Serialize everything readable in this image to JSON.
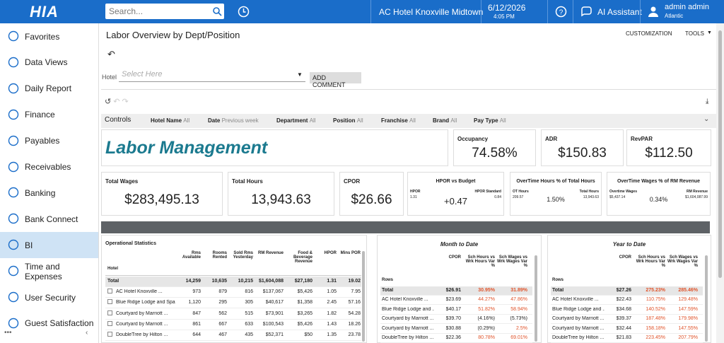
{
  "topbar": {
    "logo": "HIA",
    "search_placeholder": "Search...",
    "hotel": "AC Hotel Knoxville Midtown",
    "date": "6/12/2026",
    "time": "4:05 PM",
    "ai": "AI Assistant",
    "user": "admin admin",
    "region": "Atlantic"
  },
  "sidebar": [
    "Favorites",
    "Data Views",
    "Daily Report",
    "Finance",
    "Payables",
    "Receivables",
    "Banking",
    "Bank Connect",
    "BI",
    "Time and Expenses",
    "User Security",
    "Guest Satisfaction"
  ],
  "page": {
    "title": "Labor Overview by Dept/Position",
    "customization": "CUSTOMIZATION",
    "tools": "TOOLS",
    "hotel_label": "Hotel",
    "hotel_placeholder": "Select Here",
    "add_comment": "ADD COMMENT"
  },
  "controls": {
    "label": "Controls",
    "filters": [
      {
        "name": "Hotel Name",
        "value": "All"
      },
      {
        "name": "Date",
        "value": "Previous week"
      },
      {
        "name": "Department",
        "value": "All"
      },
      {
        "name": "Position",
        "value": "All"
      },
      {
        "name": "Franchise",
        "value": "All"
      },
      {
        "name": "Brand",
        "value": "All"
      },
      {
        "name": "Pay Type",
        "value": "All"
      }
    ]
  },
  "banner": "Labor Management",
  "kpis_top": [
    {
      "label": "Occupancy",
      "value": "74.58%"
    },
    {
      "label": "ADR",
      "value": "$150.83"
    },
    {
      "label": "RevPAR",
      "value": "$112.50"
    }
  ],
  "kpis_simple": [
    {
      "label": "Total Wages",
      "value": "$283,495.13"
    },
    {
      "label": "Total Hours",
      "value": "13,943.63"
    },
    {
      "label": "CPOR",
      "value": "$26.66"
    }
  ],
  "kpis_compare": [
    {
      "label": "HPOR vs Budget",
      "left_label": "HPOR",
      "left_value": "1.31",
      "right_label": "HPOR Standard",
      "right_value": "0.84",
      "value": "+0.47"
    },
    {
      "label": "OverTime Hours % of Total Hours",
      "left_label": "OT Hours",
      "left_value": "209.57",
      "right_label": "Total Hours",
      "right_value": "13,943.63",
      "value": "1.50%"
    },
    {
      "label": "OverTime Wages % of RM Revenue",
      "left_label": "Overtime Wages",
      "left_value": "$5,437.14",
      "right_label": "RM Revenue",
      "right_value": "$1,604,087.99",
      "value": "0.34%"
    }
  ],
  "ops": {
    "title": "Operational Statistics",
    "columns": [
      "Hotel",
      "Rms Available",
      "Rooms Rented",
      "Sold Rms Yesterday",
      "RM Revenue",
      "Food & Beverage Revenue",
      "HPOR",
      "Mins POR"
    ],
    "rows": [
      [
        "Total",
        "14,259",
        "10,635",
        "10,215",
        "$1,604,088",
        "$27,180",
        "1.31",
        "19.02"
      ],
      [
        "AC Hotel Knoxville ...",
        "973",
        "879",
        "816",
        "$137,067",
        "$5,426",
        "1.05",
        "7.95"
      ],
      [
        "Blue Ridge Lodge and Spa",
        "1,120",
        "295",
        "305",
        "$40,617",
        "$1,358",
        "2.45",
        "57.16"
      ],
      [
        "Courtyard by Marriott ...",
        "847",
        "562",
        "515",
        "$73,901",
        "$3,265",
        "1.82",
        "54.28"
      ],
      [
        "Courtyard by Marriott ...",
        "861",
        "667",
        "633",
        "$100,543",
        "$5,426",
        "1.43",
        "18.26"
      ],
      [
        "DoubleTree by Hilton ...",
        "644",
        "467",
        "435",
        "$52,371",
        "$50",
        "1.35",
        "23.78"
      ]
    ]
  },
  "periods": [
    {
      "title": "Month to Date",
      "columns": [
        "Rows",
        "CPOR",
        "Sch Hours vs Wrk Hours Var %",
        "Sch Wages vs Wrk Wages Var %"
      ],
      "rows": [
        [
          "Total",
          "$26.91",
          "30.95%",
          "31.89%"
        ],
        [
          "AC Hotel Knoxville ...",
          "$23.69",
          "44.27%",
          "47.86%"
        ],
        [
          "Blue Ridge Lodge and ...",
          "$40.17",
          "51.82%",
          "58.94%"
        ],
        [
          "Courtyard by Marriott ...",
          "$39.70",
          "(4.16%)",
          "(5.73%)"
        ],
        [
          "Courtyard by Marriott ...",
          "$30.88",
          "(0.29%)",
          "2.5%"
        ],
        [
          "DoubleTree by Hilton ...",
          "$22.36",
          "80.78%",
          "69.01%"
        ]
      ]
    },
    {
      "title": "Year to Date",
      "columns": [
        "Rows",
        "CPOR",
        "Sch Hours vs Wrk Hours Var %",
        "Sch Wages vs Wrk Wages Var %"
      ],
      "rows": [
        [
          "Total",
          "$27.26",
          "275.23%",
          "285.46%"
        ],
        [
          "AC Hotel Knoxville ...",
          "$22.43",
          "110.75%",
          "129.48%"
        ],
        [
          "Blue Ridge Lodge and ...",
          "$34.68",
          "140.52%",
          "147.59%"
        ],
        [
          "Courtyard by Marriott ...",
          "$39.37",
          "187.48%",
          "179.98%"
        ],
        [
          "Courtyard by Marriott ...",
          "$32.44",
          "158.18%",
          "147.55%"
        ],
        [
          "DoubleTree by Hilton ...",
          "$21.83",
          "223.45%",
          "207.79%"
        ]
      ]
    }
  ]
}
